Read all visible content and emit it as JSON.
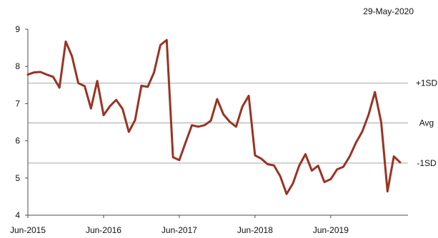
{
  "header": {
    "date": "29-May-2020"
  },
  "colors": {
    "line": "#9a3324",
    "axis": "#4d4d4d",
    "refline": "#a6a6a6"
  },
  "chart_data": {
    "type": "line",
    "title": "",
    "xlabel": "",
    "ylabel": "",
    "ylim": [
      4,
      9
    ],
    "yticks": [
      4,
      5,
      6,
      7,
      8,
      9
    ],
    "xlim": [
      "2015-06",
      "2020-05"
    ],
    "xticks": [
      {
        "label": "Jun-2015",
        "date": "2015-06"
      },
      {
        "label": "Jun-2016",
        "date": "2016-06"
      },
      {
        "label": "Jun-2017",
        "date": "2017-06"
      },
      {
        "label": "Jun-2018",
        "date": "2018-06"
      },
      {
        "label": "Jun-2019",
        "date": "2019-06"
      }
    ],
    "reference_lines": [
      {
        "label": "+1SD",
        "value": 7.55
      },
      {
        "label": "Avg",
        "value": 6.48
      },
      {
        "label": "-1SD",
        "value": 5.4
      }
    ],
    "series": [
      {
        "x": [
          "2015-06",
          "2015-07",
          "2015-08",
          "2015-09",
          "2015-10",
          "2015-11",
          "2015-12",
          "2016-01",
          "2016-02",
          "2016-03",
          "2016-04",
          "2016-05",
          "2016-06",
          "2016-07",
          "2016-08",
          "2016-09",
          "2016-10",
          "2016-11",
          "2016-12",
          "2017-01",
          "2017-02",
          "2017-03",
          "2017-04",
          "2017-05",
          "2017-06",
          "2017-07",
          "2017-08",
          "2017-09",
          "2017-10",
          "2017-11",
          "2017-12",
          "2018-01",
          "2018-02",
          "2018-03",
          "2018-04",
          "2018-05",
          "2018-06",
          "2018-07",
          "2018-08",
          "2018-09",
          "2018-10",
          "2018-11",
          "2018-12",
          "2019-01",
          "2019-02",
          "2019-03",
          "2019-04",
          "2019-05",
          "2019-06",
          "2019-07",
          "2019-08",
          "2019-09",
          "2019-10",
          "2019-11",
          "2019-12",
          "2020-01",
          "2020-02",
          "2020-03",
          "2020-04",
          "2020-05"
        ],
        "values": [
          7.78,
          7.84,
          7.85,
          7.78,
          7.72,
          7.43,
          8.67,
          8.27,
          7.55,
          7.47,
          6.87,
          7.61,
          6.69,
          6.93,
          7.1,
          6.86,
          6.24,
          6.56,
          7.48,
          7.45,
          7.84,
          8.57,
          8.71,
          5.56,
          5.48,
          5.96,
          6.42,
          6.38,
          6.42,
          6.54,
          7.12,
          6.71,
          6.51,
          6.38,
          6.92,
          7.21,
          5.61,
          5.52,
          5.37,
          5.34,
          5.05,
          4.57,
          4.85,
          5.33,
          5.64,
          5.2,
          5.33,
          4.89,
          4.97,
          5.23,
          5.3,
          5.58,
          5.95,
          6.25,
          6.7,
          7.31,
          6.5,
          4.64,
          5.58,
          5.42
        ]
      }
    ]
  }
}
